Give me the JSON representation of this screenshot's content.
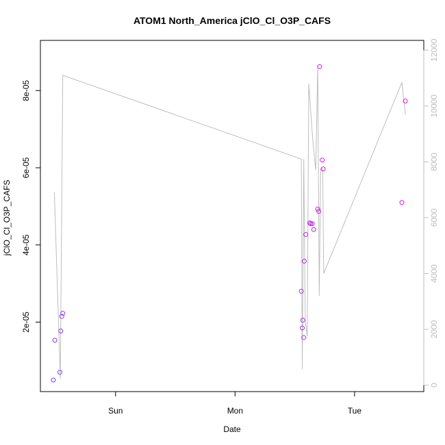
{
  "chart_data": {
    "type": "scatter",
    "title": "ATOM1 North_America jClO_Cl_O3P_CAFS",
    "xlabel": "Date",
    "ylabel": "jClO_Cl_O3P_CAFS",
    "x_ticks": [
      "Sun",
      "Mon",
      "Tue"
    ],
    "y_ticks": [
      "2e-05",
      "4e-05",
      "6e-05",
      "8e-05"
    ],
    "y_ticks_right": [
      "0",
      "2000",
      "4000",
      "6000",
      "8000",
      "10000",
      "12000"
    ],
    "xlim_hours": [
      -15.1,
      61.9
    ],
    "ylim": [
      2e-06,
      9.3e-05
    ],
    "ylim_right": [
      -230,
      12350
    ],
    "x_tick_hours": [
      0,
      24,
      48
    ],
    "y_tick_values": [
      2e-05,
      4e-05,
      6e-05,
      8e-05
    ],
    "y_right_tick_values": [
      0,
      2000,
      4000,
      6000,
      8000,
      10000,
      12000
    ],
    "point_color_scale": [
      "#7b3cf5",
      "#f010e6"
    ],
    "line_color": "#bdbdbd",
    "series": [
      {
        "kind": "points",
        "x_hours": [
          -12.5,
          -12.2,
          -11.2,
          -11.0,
          -10.8,
          -10.6,
          37.3,
          37.5,
          37.6,
          37.8,
          37.9,
          38.2,
          39.0,
          39.2,
          39.5,
          39.8,
          40.6,
          40.8,
          41.0,
          41.5,
          41.7,
          57.5,
          58.2
        ],
        "y": [
          5e-06,
          1.53e-05,
          7e-06,
          1.77e-05,
          2.15e-05,
          2.23e-05,
          2.8e-05,
          1.85e-05,
          2.05e-05,
          1.6e-05,
          3.58e-05,
          4.27e-05,
          4.57e-05,
          4.55e-05,
          4.55e-05,
          4.4e-05,
          4.93e-05,
          4.87e-05,
          8.62e-05,
          6.2e-05,
          5.97e-05,
          5.1e-05,
          7.73e-05
        ]
      },
      {
        "kind": "line",
        "axis": "right",
        "x_hours": [
          -12.3,
          -11.1,
          -10.6,
          37.3,
          37.5,
          37.8,
          38.1,
          38.5,
          38.8,
          39.6,
          40.2,
          40.6,
          40.9,
          41.2,
          41.6,
          41.8,
          57.5,
          58.2
        ],
        "y": [
          6900,
          230,
          11100,
          8100,
          580,
          8100,
          2300,
          1750,
          10800,
          8800,
          7700,
          11450,
          3200,
          7750,
          7750,
          4000,
          10850,
          9700
        ]
      }
    ]
  }
}
